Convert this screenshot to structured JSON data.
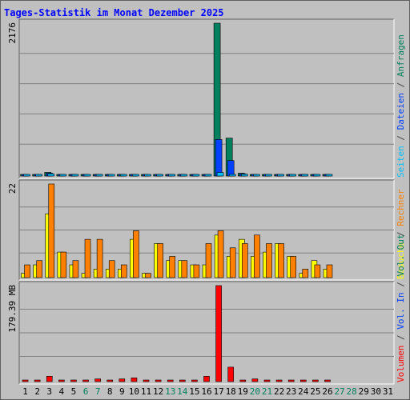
{
  "title": "Tages-Statistik im Monat Dezember 2025",
  "colors": {
    "background": "#c0c0c0",
    "title": "#0000ff",
    "grid": "#808080",
    "baseline": "#000000",
    "frame_dark": "#606060",
    "frame_light": "#ffffff",
    "weekday_label": "#000000",
    "weekend_label": "#00805c"
  },
  "chart_data": [
    {
      "type": "bar",
      "panel": "top",
      "ylabel_value": "2176",
      "ylim": [
        0,
        2176
      ],
      "grid": true,
      "right_legend": [
        {
          "text": "Seiten",
          "color": "#00c0ff"
        },
        {
          "text": " / ",
          "color": "#404040"
        },
        {
          "text": "Dateien",
          "color": "#0040ff"
        },
        {
          "text": " / ",
          "color": "#404040"
        },
        {
          "text": "Anfragen",
          "color": "#00805c"
        }
      ],
      "categories": [
        "1",
        "2",
        "3",
        "4",
        "5",
        "6",
        "7",
        "8",
        "9",
        "10",
        "11",
        "12",
        "13",
        "14",
        "15",
        "16",
        "17",
        "18",
        "19",
        "20",
        "21",
        "22",
        "23",
        "24",
        "25",
        "26",
        "27",
        "28",
        "29",
        "30",
        "31"
      ],
      "series": [
        {
          "name": "Anfragen",
          "color": "#00805c",
          "values": [
            10,
            10,
            52,
            10,
            10,
            10,
            10,
            10,
            10,
            20,
            10,
            10,
            10,
            10,
            10,
            10,
            2176,
            540,
            40,
            10,
            10,
            10,
            10,
            10,
            10,
            10,
            0,
            0,
            0,
            0,
            0
          ]
        },
        {
          "name": "Dateien",
          "color": "#0040ff",
          "values": [
            8,
            8,
            40,
            8,
            8,
            8,
            8,
            8,
            8,
            12,
            8,
            8,
            8,
            8,
            8,
            8,
            520,
            220,
            30,
            8,
            8,
            8,
            8,
            8,
            8,
            8,
            0,
            0,
            0,
            0,
            0
          ]
        },
        {
          "name": "Seiten",
          "color": "#00c0ff",
          "values": [
            4,
            4,
            30,
            4,
            4,
            4,
            4,
            4,
            4,
            6,
            4,
            4,
            4,
            4,
            4,
            4,
            50,
            10,
            25,
            4,
            4,
            4,
            4,
            4,
            4,
            4,
            0,
            0,
            0,
            0,
            0
          ]
        }
      ]
    },
    {
      "type": "bar",
      "panel": "middle",
      "ylabel_value": "22",
      "ylim": [
        0,
        22
      ],
      "grid": true,
      "right_legend": [
        {
          "text": "Besuche",
          "color": "#ffff00"
        },
        {
          "text": " / ",
          "color": "#404040"
        },
        {
          "text": "Rechner",
          "color": "#ff8000"
        }
      ],
      "categories": [
        "1",
        "2",
        "3",
        "4",
        "5",
        "6",
        "7",
        "8",
        "9",
        "10",
        "11",
        "12",
        "13",
        "14",
        "15",
        "16",
        "17",
        "18",
        "19",
        "20",
        "21",
        "22",
        "23",
        "24",
        "25",
        "26",
        "27",
        "28",
        "29",
        "30",
        "31"
      ],
      "series": [
        {
          "name": "Besuche",
          "color": "#ffff00",
          "values": [
            1,
            3,
            15,
            6,
            3,
            1,
            2,
            2,
            2,
            9,
            1,
            8,
            4,
            4,
            3,
            3,
            10,
            5,
            9,
            5,
            6,
            8,
            5,
            1,
            4,
            2,
            0,
            0,
            0,
            0,
            0
          ]
        },
        {
          "name": "Rechner",
          "color": "#ff8000",
          "values": [
            3,
            4,
            22,
            6,
            4,
            9,
            9,
            4,
            3,
            11,
            1,
            8,
            5,
            4,
            3,
            8,
            11,
            7,
            8,
            10,
            8,
            8,
            5,
            2,
            3,
            3,
            0,
            0,
            0,
            0,
            0
          ]
        }
      ]
    },
    {
      "type": "bar",
      "panel": "bottom",
      "ylabel_value": "179.39 MB",
      "ylim": [
        0,
        179.39
      ],
      "grid": true,
      "right_legend": [
        {
          "text": "Volumen",
          "color": "#ff0000"
        },
        {
          "text": " / ",
          "color": "#404040"
        },
        {
          "text": "Vol. In",
          "color": "#0040ff"
        },
        {
          "text": " / ",
          "color": "#404040"
        },
        {
          "text": "Vol. Out",
          "color": "#00805c"
        }
      ],
      "categories": [
        "1",
        "2",
        "3",
        "4",
        "5",
        "6",
        "7",
        "8",
        "9",
        "10",
        "11",
        "12",
        "13",
        "14",
        "15",
        "16",
        "17",
        "18",
        "19",
        "20",
        "21",
        "22",
        "23",
        "24",
        "25",
        "26",
        "27",
        "28",
        "29",
        "30",
        "31"
      ],
      "x_weekend": [
        6,
        7,
        13,
        14,
        20,
        21,
        27,
        28
      ],
      "series": [
        {
          "name": "Volumen",
          "color": "#ff0000",
          "values": [
            1,
            1,
            10,
            1,
            3,
            3,
            5,
            2,
            5,
            7,
            1,
            1,
            1,
            1,
            1,
            10,
            179.39,
            27,
            3,
            5,
            1,
            1,
            1,
            1,
            1,
            3,
            0,
            0,
            0,
            0,
            0
          ]
        }
      ]
    }
  ]
}
